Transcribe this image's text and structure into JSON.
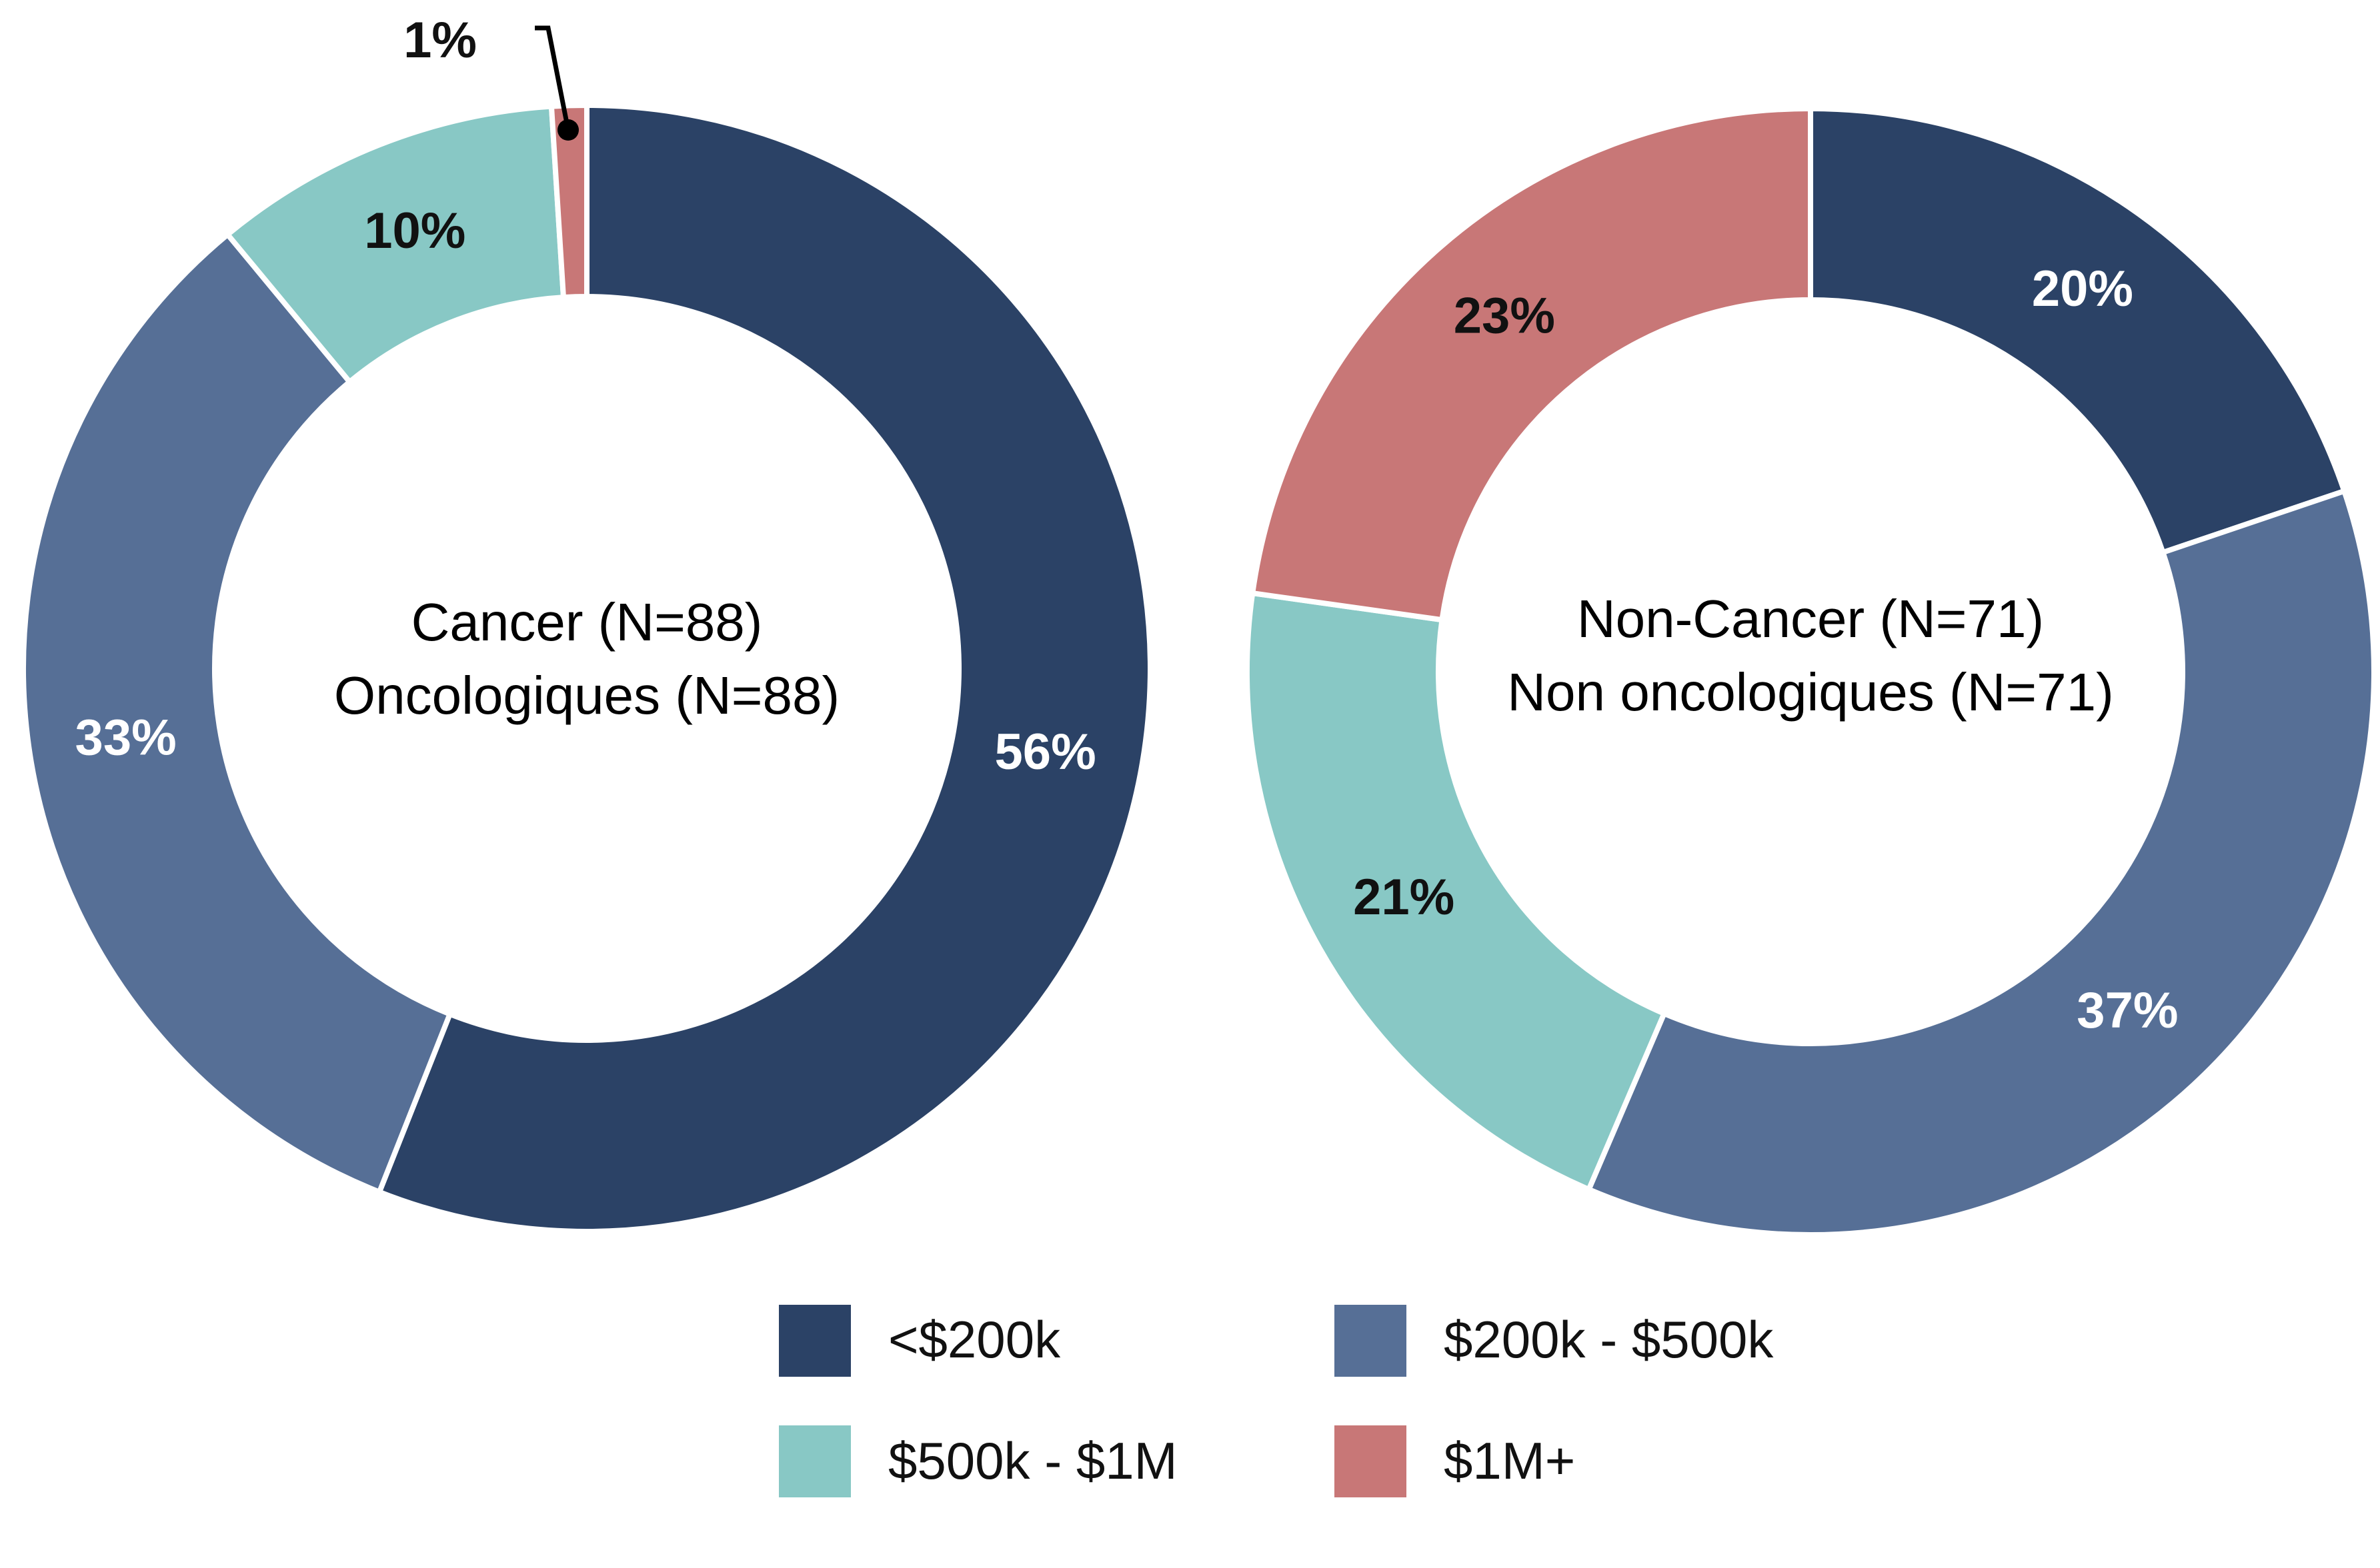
{
  "chart_data": [
    {
      "type": "pie",
      "donut": true,
      "center_lines": [
        "Cancer (N=88)",
        "Oncologiques (N=88)"
      ],
      "categories": [
        "<$200k",
        "$200k - $500k",
        "$500k - $1M",
        "$1M+"
      ],
      "values": [
        56,
        33,
        10,
        1
      ],
      "value_labels": [
        "56%",
        "33%",
        "10%",
        "1%"
      ],
      "label_colors": [
        "#ffffff",
        "#ffffff",
        "#111111",
        "#111111"
      ]
    },
    {
      "type": "pie",
      "donut": true,
      "center_lines": [
        "Non-Cancer (N=71)",
        "Non oncologiques (N=71)"
      ],
      "categories": [
        "<$200k",
        "$200k - $500k",
        "$500k - $1M",
        "$1M+"
      ],
      "values": [
        20,
        37,
        21,
        23
      ],
      "value_labels": [
        "20%",
        "37%",
        "21%",
        "23%"
      ],
      "label_colors": [
        "#ffffff",
        "#ffffff",
        "#111111",
        "#111111"
      ]
    }
  ],
  "legend": {
    "placement": "bottom",
    "items": [
      {
        "label": "<$200k",
        "color": "#2b4266"
      },
      {
        "label": "$200k - $500k",
        "color": "#566f96"
      },
      {
        "label": "$500k - $1M",
        "color": "#88c8c5"
      },
      {
        "label": "$1M+",
        "color": "#c87777"
      }
    ]
  }
}
